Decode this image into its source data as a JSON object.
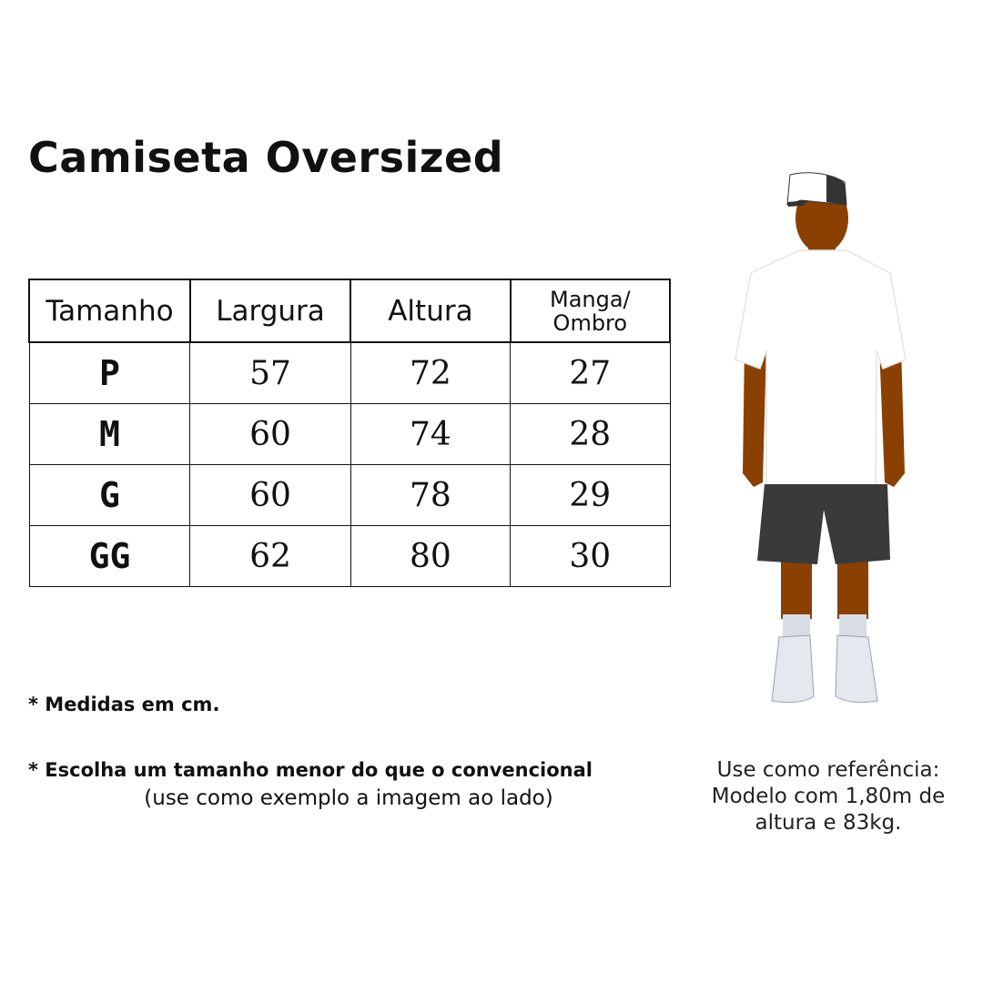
{
  "title": "Camiseta Oversized",
  "table": {
    "headers": [
      "Tamanho",
      "Largura",
      "Altura",
      "Manga/ Ombro"
    ],
    "rows": [
      [
        "P",
        "57",
        "72",
        "27"
      ],
      [
        "M",
        "60",
        "74",
        "28"
      ],
      [
        "G",
        "60",
        "78",
        "29"
      ],
      [
        "GG",
        "62",
        "80",
        "30"
      ]
    ]
  },
  "notes": {
    "units": "* Medidas em cm.",
    "advice": "* Escolha um tamanho menor do que o convencional",
    "advice_sub": "(use como exemplo a imagem ao lado)"
  },
  "reference": {
    "text": "Use como referência: Modelo com 1,80m de altura e 83kg."
  },
  "colors": {
    "skin": "#8a4000",
    "shirt": "#ffffff",
    "shorts": "#3a3a3a"
  }
}
